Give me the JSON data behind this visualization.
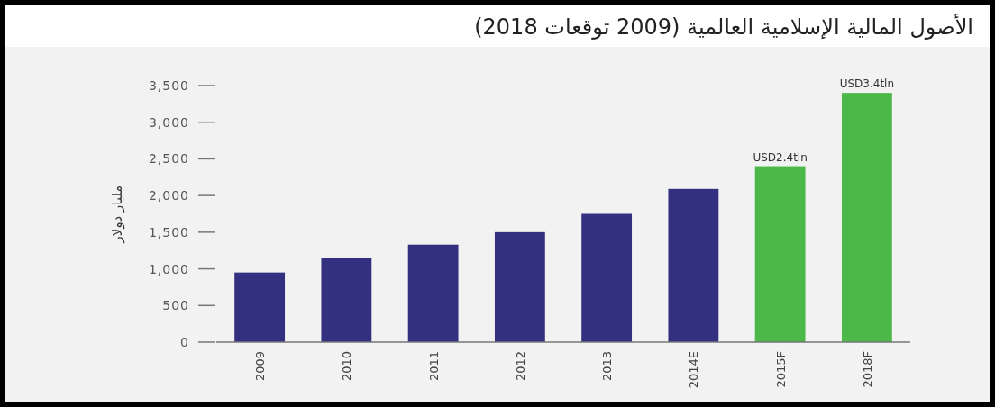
{
  "chart_data": {
    "type": "bar",
    "title": "الأصول المالية الإسلامية العالمية (2009 توقعات 2018)",
    "ylabel": "مليار دولار",
    "categories": [
      "2009",
      "2010",
      "2011",
      "2012",
      "2013",
      "2014E",
      "2015F",
      "2018F"
    ],
    "values": [
      950,
      1150,
      1330,
      1500,
      1750,
      2090,
      2400,
      3400
    ],
    "colors": [
      "#33317f",
      "#33317f",
      "#33317f",
      "#33317f",
      "#33317f",
      "#33317f",
      "#4cb848",
      "#4cb848"
    ],
    "value_labels": [
      null,
      null,
      null,
      null,
      null,
      null,
      "USD2.4tln",
      "USD3.4tln"
    ],
    "ylim": [
      0,
      3500
    ],
    "yticks": [
      {
        "value": 0,
        "label": "0"
      },
      {
        "value": 500,
        "label": "500"
      },
      {
        "value": 1000,
        "label": "1,000"
      },
      {
        "value": 1500,
        "label": "1,500"
      },
      {
        "value": 2000,
        "label": "2,000"
      },
      {
        "value": 2500,
        "label": "2,500"
      },
      {
        "value": 3000,
        "label": "3,000"
      },
      {
        "value": 3500,
        "label": "3,500"
      }
    ],
    "grid": false
  }
}
